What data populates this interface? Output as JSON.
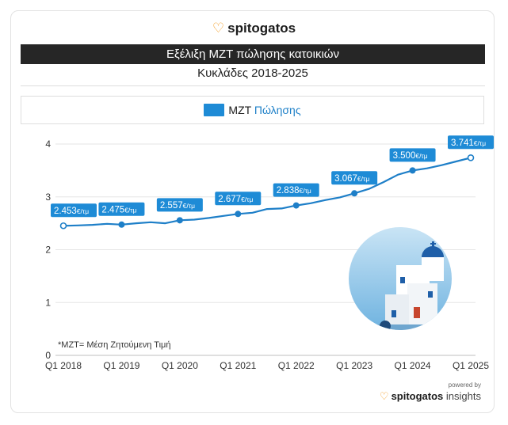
{
  "brand": {
    "name": "spitogatos",
    "icon": "cat-logo-icon"
  },
  "header": {
    "title": "Εξέλιξη ΜΖΤ πώλησης κατοικιών",
    "subtitle": "Κυκλάδες 2018-2025"
  },
  "legend": {
    "prefix": "ΜΖΤ ",
    "highlight": "Πώλησης"
  },
  "footnote": "*ΜΖΤ= Μέση Ζητούμενη Τιμή",
  "footer": {
    "powered": "powered by",
    "brand_bold": "spitogatos",
    "brand_light": "insights"
  },
  "colors": {
    "line": "#1e7fc8",
    "label_bg": "#1e8bd6",
    "accent": "#f39a1e"
  },
  "chart_data": {
    "type": "line",
    "title": "Εξέλιξη ΜΖΤ πώλησης κατοικιών",
    "subtitle": "Κυκλάδες 2018-2025",
    "ylim": [
      0,
      4
    ],
    "yticks": [
      "0",
      "1",
      "2",
      "3",
      "4"
    ],
    "xticks": [
      "Q1 2018",
      "Q1 2019",
      "Q1 2020",
      "Q1 2021",
      "Q1 2022",
      "Q1 2023",
      "Q1 2024",
      "Q1 2025"
    ],
    "grid": true,
    "legend": "top",
    "series": [
      {
        "name": "ΜΖΤ Πώλησης",
        "values": [
          2.453,
          2.46,
          2.47,
          2.49,
          2.475,
          2.5,
          2.52,
          2.5,
          2.557,
          2.57,
          2.6,
          2.64,
          2.677,
          2.7,
          2.77,
          2.78,
          2.838,
          2.88,
          2.94,
          2.99,
          3.067,
          3.15,
          3.28,
          3.42,
          3.5,
          3.54,
          3.6,
          3.67,
          3.741
        ]
      }
    ],
    "annotations": [
      {
        "index": 0,
        "label": "2.453",
        "unit": "€/τμ"
      },
      {
        "index": 4,
        "label": "2.475",
        "unit": "€/τμ"
      },
      {
        "index": 8,
        "label": "2.557",
        "unit": "€/τμ"
      },
      {
        "index": 12,
        "label": "2.677",
        "unit": "€/τμ"
      },
      {
        "index": 16,
        "label": "2.838",
        "unit": "€/τμ"
      },
      {
        "index": 20,
        "label": "3.067",
        "unit": "€/τμ"
      },
      {
        "index": 24,
        "label": "3.500",
        "unit": "€/τμ"
      },
      {
        "index": 28,
        "label": "3.741",
        "unit": "€/τμ"
      }
    ]
  }
}
